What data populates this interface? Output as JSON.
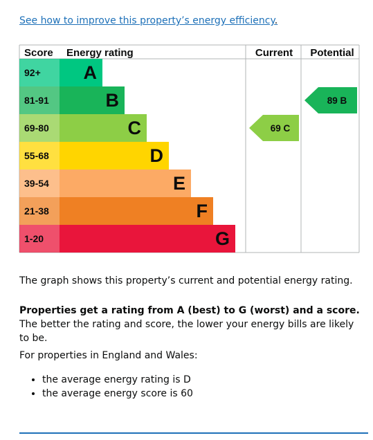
{
  "improve_link": "See how to improve this property’s energy efficiency",
  "improve_link_end": ".",
  "chart_data": {
    "type": "bar",
    "headers": {
      "score": "Score",
      "rating": "Energy rating",
      "current": "Current",
      "potential": "Potential"
    },
    "bands": [
      {
        "letter": "A",
        "score_range": "92+",
        "color": "#00c781"
      },
      {
        "letter": "B",
        "score_range": "81-91",
        "color": "#19b459"
      },
      {
        "letter": "C",
        "score_range": "69-80",
        "color": "#8dce46"
      },
      {
        "letter": "D",
        "score_range": "55-68",
        "color": "#ffd500"
      },
      {
        "letter": "E",
        "score_range": "39-54",
        "color": "#fcaa65"
      },
      {
        "letter": "F",
        "score_range": "21-38",
        "color": "#ef8023"
      },
      {
        "letter": "G",
        "score_range": "1-20",
        "color": "#e9153b"
      }
    ],
    "current": {
      "score": 69,
      "letter": "C",
      "label": "69 C",
      "color": "#8dce46"
    },
    "potential": {
      "score": 89,
      "letter": "B",
      "label": "89 B",
      "color": "#19b459"
    }
  },
  "text": {
    "graph_description": "The graph shows this property’s current and potential energy rating.",
    "rating_bold": "Properties get a rating from A (best) to G (worst) and a score.",
    "rating_rest": " The better the rating and score, the lower your energy bills are likely to be.",
    "regions_intro": "For properties in England and Wales:",
    "bullets": [
      "the average energy rating is D",
      "the average energy score is 60"
    ]
  }
}
